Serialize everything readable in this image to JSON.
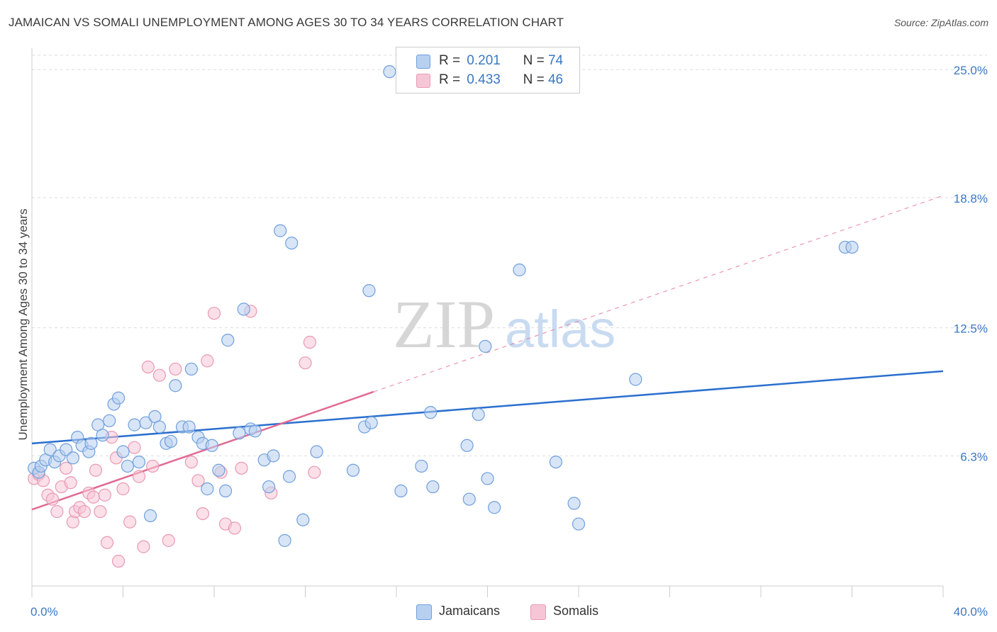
{
  "title": "JAMAICAN VS SOMALI UNEMPLOYMENT AMONG AGES 30 TO 34 YEARS CORRELATION CHART",
  "source": "Source: ZipAtlas.com",
  "watermark": {
    "zip": "ZIP",
    "atlas": "atlas"
  },
  "legend": {
    "r_label": "R =",
    "n_label": "N =",
    "items": [
      {
        "r": "0.201",
        "n": "74"
      },
      {
        "r": "0.433",
        "n": "46"
      }
    ]
  },
  "bottom_legend": [
    "Jamaicans",
    "Somalis"
  ],
  "colors": {
    "jamaicans_fill": "#b8d0f0",
    "jamaicans_stroke": "#6f9fdc",
    "jamaicans_line": "#2a6fcf",
    "somalis_fill": "#f7c6d6",
    "somalis_stroke": "#e899b3",
    "somalis_line": "#e06a94",
    "axis_label": "#3b78c4",
    "grid": "#dddddd"
  },
  "chart_data": {
    "type": "scatter",
    "title": "JAMAICAN VS SOMALI UNEMPLOYMENT AMONG AGES 30 TO 34 YEARS CORRELATION CHART",
    "xlabel": "",
    "ylabel": "Unemployment Among Ages 30 to 34 years",
    "xlim": [
      0,
      40
    ],
    "ylim": [
      0,
      25.9
    ],
    "x_tick_labels": [
      "0.0%",
      "40.0%"
    ],
    "y_ticks": [
      6.3,
      12.5,
      18.8,
      25.0
    ],
    "y_tick_labels": [
      "6.3%",
      "12.5%",
      "18.8%",
      "25.0%"
    ],
    "grid": true,
    "legend_position": "top-center",
    "series": [
      {
        "name": "Jamaicans",
        "r": 0.201,
        "n": 74,
        "trend": {
          "x": [
            0,
            40
          ],
          "y": [
            6.9,
            10.4
          ]
        },
        "points": [
          [
            0.1,
            5.7
          ],
          [
            0.3,
            5.5
          ],
          [
            0.4,
            5.8
          ],
          [
            0.6,
            6.1
          ],
          [
            0.8,
            6.6
          ],
          [
            1.0,
            6.0
          ],
          [
            1.2,
            6.3
          ],
          [
            1.5,
            6.6
          ],
          [
            1.8,
            6.2
          ],
          [
            2.0,
            7.2
          ],
          [
            2.2,
            6.8
          ],
          [
            2.5,
            6.5
          ],
          [
            2.6,
            6.9
          ],
          [
            2.9,
            7.8
          ],
          [
            3.1,
            7.3
          ],
          [
            3.4,
            8.0
          ],
          [
            3.6,
            8.8
          ],
          [
            3.8,
            9.1
          ],
          [
            4.0,
            6.5
          ],
          [
            4.2,
            5.8
          ],
          [
            4.5,
            7.8
          ],
          [
            4.7,
            6.0
          ],
          [
            5.0,
            7.9
          ],
          [
            5.2,
            3.4
          ],
          [
            5.4,
            8.2
          ],
          [
            5.6,
            7.7
          ],
          [
            5.9,
            6.9
          ],
          [
            6.1,
            7.0
          ],
          [
            6.3,
            9.7
          ],
          [
            6.6,
            7.7
          ],
          [
            6.9,
            7.7
          ],
          [
            7.0,
            10.5
          ],
          [
            7.3,
            7.2
          ],
          [
            7.5,
            6.9
          ],
          [
            7.7,
            4.7
          ],
          [
            7.9,
            6.8
          ],
          [
            8.2,
            5.6
          ],
          [
            8.5,
            4.6
          ],
          [
            8.6,
            11.9
          ],
          [
            9.1,
            7.4
          ],
          [
            9.3,
            13.4
          ],
          [
            9.6,
            7.6
          ],
          [
            9.8,
            7.5
          ],
          [
            10.2,
            6.1
          ],
          [
            10.4,
            4.8
          ],
          [
            10.6,
            6.3
          ],
          [
            10.9,
            17.2
          ],
          [
            11.1,
            2.2
          ],
          [
            11.3,
            5.3
          ],
          [
            11.4,
            16.6
          ],
          [
            11.9,
            3.2
          ],
          [
            12.5,
            6.5
          ],
          [
            14.1,
            5.6
          ],
          [
            14.6,
            7.7
          ],
          [
            14.8,
            14.3
          ],
          [
            14.9,
            7.9
          ],
          [
            15.7,
            24.9
          ],
          [
            16.2,
            4.6
          ],
          [
            17.1,
            5.8
          ],
          [
            17.5,
            8.4
          ],
          [
            17.6,
            4.8
          ],
          [
            19.1,
            6.8
          ],
          [
            19.2,
            4.2
          ],
          [
            19.6,
            8.3
          ],
          [
            19.9,
            11.6
          ],
          [
            20.0,
            5.2
          ],
          [
            20.3,
            3.8
          ],
          [
            21.4,
            15.3
          ],
          [
            23.0,
            6.0
          ],
          [
            23.8,
            4.0
          ],
          [
            24.0,
            3.0
          ],
          [
            26.5,
            10.0
          ],
          [
            35.7,
            16.4
          ],
          [
            36.0,
            16.4
          ]
        ]
      },
      {
        "name": "Somalis",
        "r": 0.433,
        "n": 46,
        "trend": {
          "x": [
            0,
            15
          ],
          "y": [
            3.7,
            9.4
          ]
        },
        "trend_extension": {
          "x": [
            15,
            40
          ],
          "y": [
            9.4,
            18.9
          ]
        },
        "points": [
          [
            0.1,
            5.2
          ],
          [
            0.3,
            5.4
          ],
          [
            0.5,
            5.1
          ],
          [
            0.7,
            4.4
          ],
          [
            0.9,
            4.2
          ],
          [
            1.1,
            3.6
          ],
          [
            1.3,
            4.8
          ],
          [
            1.5,
            5.7
          ],
          [
            1.7,
            5.0
          ],
          [
            1.8,
            3.1
          ],
          [
            1.9,
            3.6
          ],
          [
            2.1,
            3.8
          ],
          [
            2.3,
            3.6
          ],
          [
            2.5,
            4.5
          ],
          [
            2.7,
            4.3
          ],
          [
            2.8,
            5.6
          ],
          [
            3.0,
            3.6
          ],
          [
            3.2,
            4.4
          ],
          [
            3.3,
            2.1
          ],
          [
            3.5,
            7.2
          ],
          [
            3.7,
            6.2
          ],
          [
            3.8,
            1.2
          ],
          [
            4.0,
            4.7
          ],
          [
            4.3,
            3.1
          ],
          [
            4.5,
            6.7
          ],
          [
            4.7,
            5.3
          ],
          [
            4.9,
            1.9
          ],
          [
            5.1,
            10.6
          ],
          [
            5.3,
            5.8
          ],
          [
            5.6,
            10.2
          ],
          [
            6.0,
            2.2
          ],
          [
            6.3,
            10.5
          ],
          [
            7.0,
            6.0
          ],
          [
            7.3,
            5.1
          ],
          [
            7.5,
            3.5
          ],
          [
            7.7,
            10.9
          ],
          [
            8.0,
            13.2
          ],
          [
            8.3,
            5.5
          ],
          [
            8.5,
            3.0
          ],
          [
            8.9,
            2.8
          ],
          [
            9.2,
            5.7
          ],
          [
            9.6,
            13.3
          ],
          [
            10.5,
            4.5
          ],
          [
            12.0,
            10.8
          ],
          [
            12.2,
            11.8
          ],
          [
            12.4,
            5.5
          ]
        ]
      }
    ]
  }
}
